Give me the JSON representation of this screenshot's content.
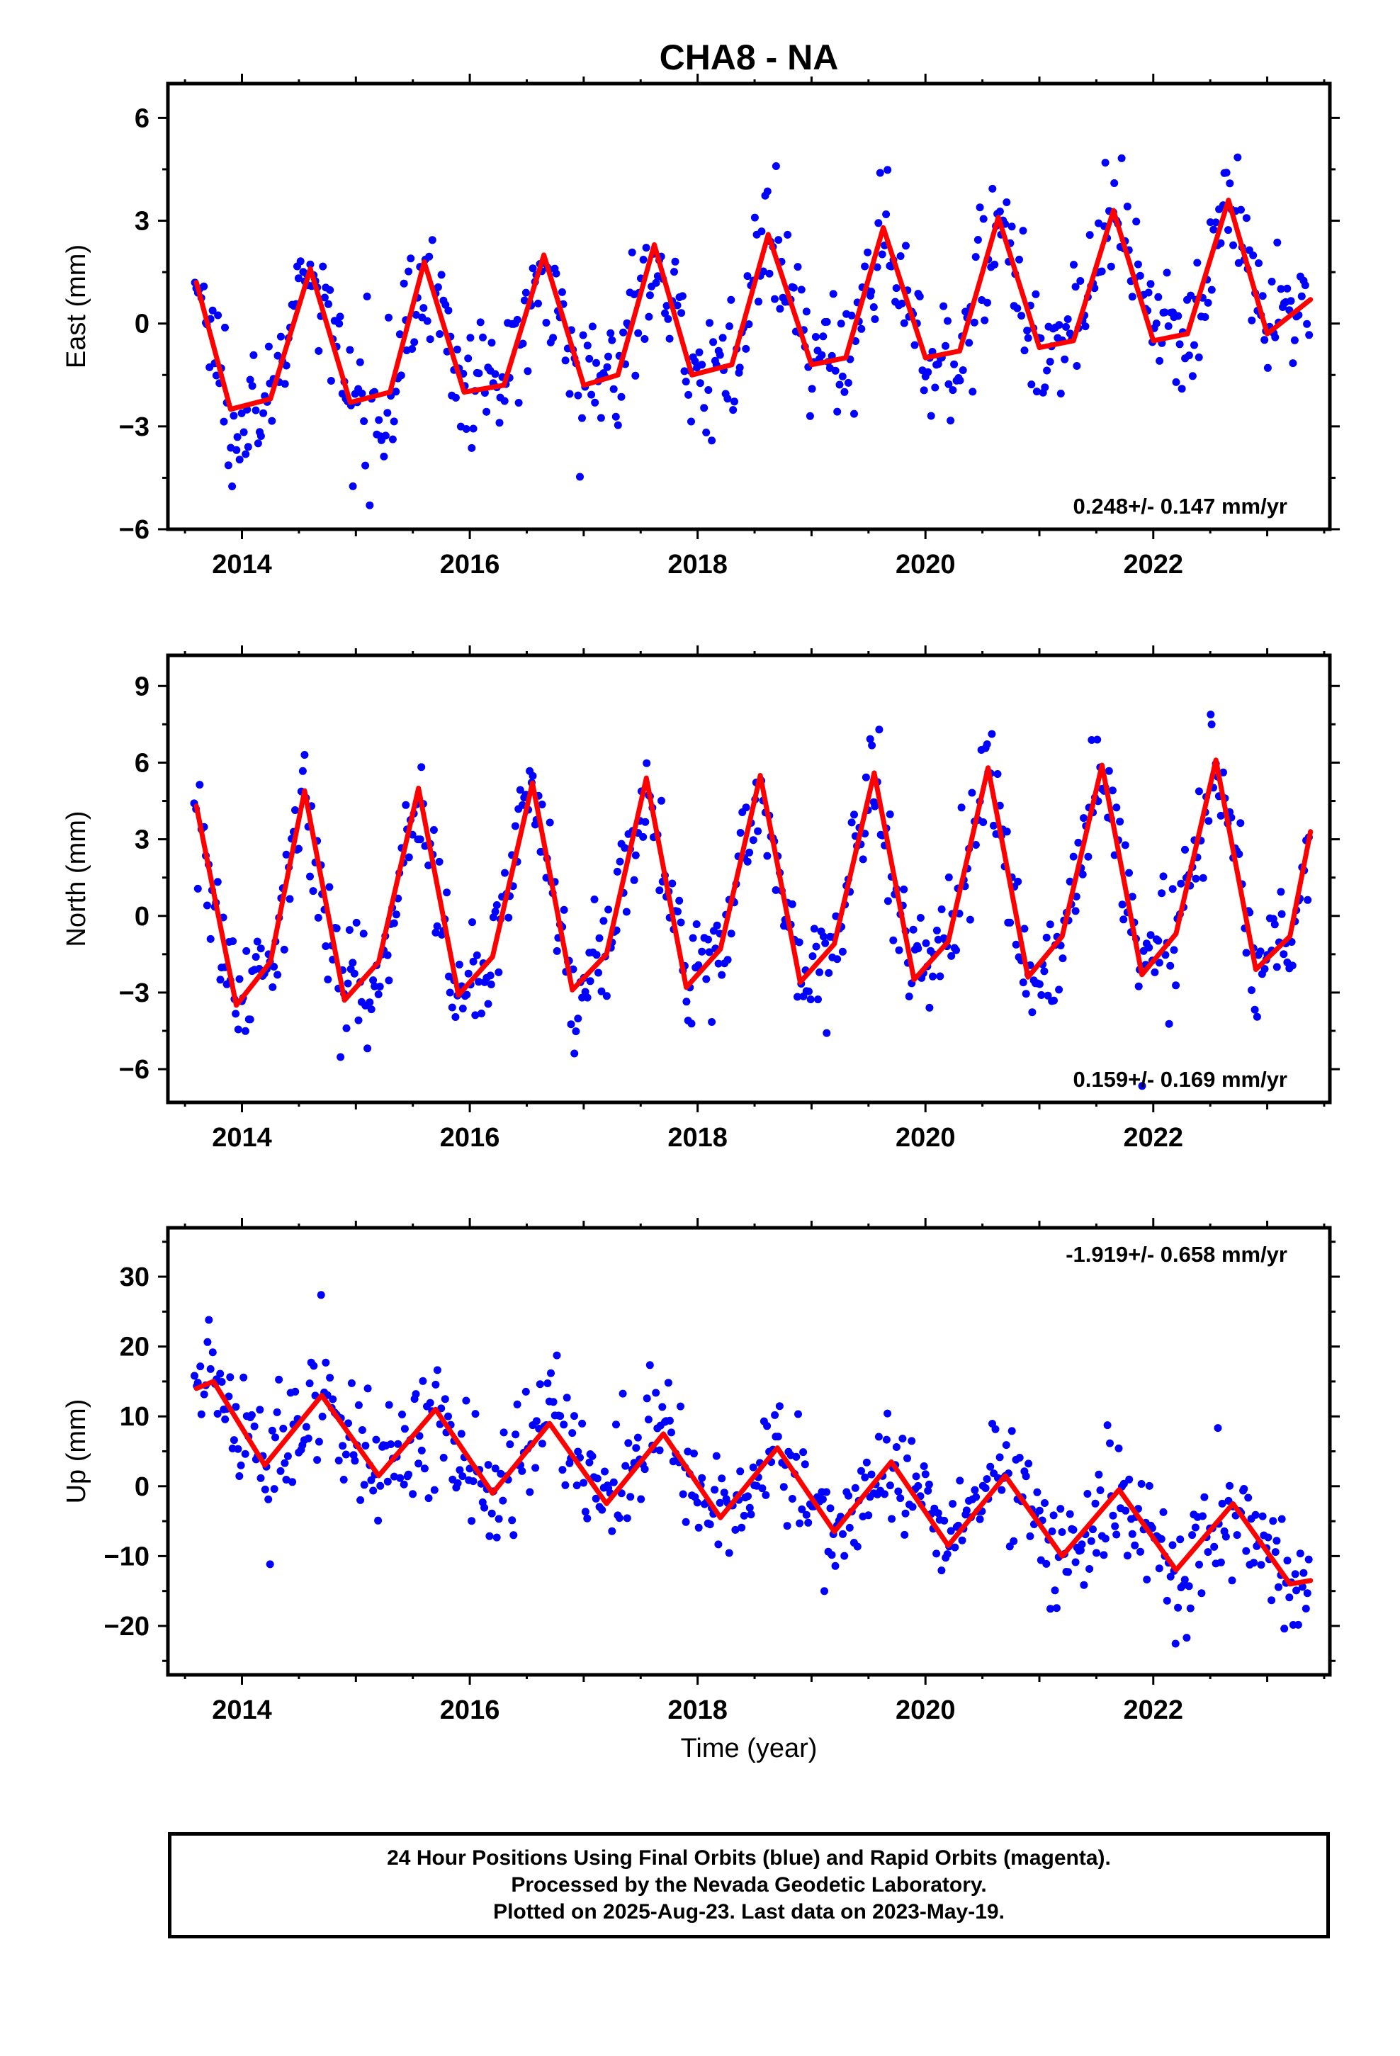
{
  "figure_title": "CHA8 - NA",
  "x_axis_label": "Time (year)",
  "footer": {
    "line1": "24 Hour Positions Using Final Orbits (blue) and Rapid Orbits (magenta).",
    "line2": "Processed by the Nevada Geodetic Laboratory.",
    "line3": "Plotted on 2025-Aug-23. Last data on 2023-May-19."
  },
  "colors": {
    "points": "#0000ff",
    "model": "#ff0000",
    "frame": "#000000"
  },
  "chart_data": [
    {
      "type": "scatter",
      "title": "CHA8 - NA",
      "xlabel": "",
      "ylabel": "East (mm)",
      "rate_text": "0.248+/- 0.147 mm/yr",
      "rate_position": "bottom-right",
      "xlim": [
        2013.35,
        2023.55
      ],
      "ylim": [
        -6,
        7
      ],
      "xticks": [
        2014,
        2016,
        2018,
        2020,
        2022
      ],
      "yticks": [
        -6,
        -3,
        0,
        3,
        6
      ],
      "grid": false,
      "data_span": [
        2013.58,
        2023.38
      ],
      "series": [
        {
          "kind": "daily positions (blue dots)",
          "trend": {
            "intercept_at_2013.6": -0.4,
            "rate": 0.248
          },
          "seasonal": {
            "annual_amplitude": 2.0,
            "peak_phase": 0.62
          },
          "scatter_sd": 0.9
        },
        {
          "kind": "model (red line)",
          "x": [
            2013.6,
            2013.9,
            2014.25,
            2014.6,
            2014.95,
            2015.3,
            2015.6,
            2015.95,
            2016.3,
            2016.65,
            2017.0,
            2017.3,
            2017.62,
            2017.95,
            2018.3,
            2018.62,
            2019.0,
            2019.3,
            2019.63,
            2020.0,
            2020.3,
            2020.64,
            2021.0,
            2021.3,
            2021.65,
            2022.0,
            2022.3,
            2022.66,
            2023.0,
            2023.38
          ],
          "values": [
            1.2,
            -2.5,
            -2.2,
            1.6,
            -2.3,
            -2.0,
            1.8,
            -2.0,
            -1.8,
            2.0,
            -1.8,
            -1.5,
            2.3,
            -1.5,
            -1.2,
            2.6,
            -1.2,
            -1.0,
            2.8,
            -1.0,
            -0.8,
            3.1,
            -0.7,
            -0.5,
            3.3,
            -0.5,
            -0.3,
            3.6,
            -0.3,
            0.7
          ]
        }
      ]
    },
    {
      "type": "scatter",
      "ylabel": "North (mm)",
      "rate_text": "0.159+/- 0.169 mm/yr",
      "rate_position": "bottom-right",
      "xlim": [
        2013.35,
        2023.55
      ],
      "ylim": [
        -7.3,
        10.2
      ],
      "xticks": [
        2014,
        2016,
        2018,
        2020,
        2022
      ],
      "yticks": [
        -6,
        -3,
        0,
        3,
        6,
        9
      ],
      "grid": false,
      "data_span": [
        2013.58,
        2023.38
      ],
      "series": [
        {
          "kind": "daily positions (blue dots)",
          "trend": {
            "intercept_at_2013.6": 0.5,
            "rate": 0.159
          },
          "seasonal": {
            "annual_amplitude": 4.2,
            "peak_phase": 0.55
          },
          "scatter_sd": 1.1
        },
        {
          "kind": "model (red line)",
          "x": [
            2013.6,
            2013.95,
            2014.25,
            2014.55,
            2014.9,
            2015.2,
            2015.55,
            2015.9,
            2016.2,
            2016.55,
            2016.9,
            2017.2,
            2017.55,
            2017.9,
            2018.2,
            2018.55,
            2018.9,
            2019.2,
            2019.55,
            2019.9,
            2020.2,
            2020.55,
            2020.9,
            2021.2,
            2021.55,
            2021.9,
            2022.2,
            2022.55,
            2022.9,
            2023.2,
            2023.38
          ],
          "values": [
            4.3,
            -3.5,
            -1.8,
            4.9,
            -3.3,
            -1.8,
            5.0,
            -3.1,
            -1.6,
            5.2,
            -2.9,
            -1.5,
            5.4,
            -2.8,
            -1.3,
            5.5,
            -2.6,
            -1.1,
            5.6,
            -2.5,
            -1.0,
            5.8,
            -2.4,
            -0.8,
            5.9,
            -2.3,
            -0.7,
            6.1,
            -2.1,
            -0.8,
            3.3
          ]
        }
      ]
    },
    {
      "type": "scatter",
      "ylabel": "Up (mm)",
      "rate_text": "-1.919+/- 0.658 mm/yr",
      "rate_position": "top-right",
      "xlim": [
        2013.35,
        2023.55
      ],
      "ylim": [
        -27,
        37
      ],
      "xticks": [
        2014,
        2016,
        2018,
        2020,
        2022
      ],
      "yticks": [
        -20,
        -10,
        0,
        10,
        20,
        30
      ],
      "grid": false,
      "data_span": [
        2013.58,
        2023.38
      ],
      "series": [
        {
          "kind": "daily positions (blue dots)",
          "trend": {
            "intercept_at_2013.6": 10.5,
            "rate": -1.919
          },
          "seasonal": {
            "annual_amplitude": 5.2,
            "peak_phase": 0.7
          },
          "scatter_sd": 4.2
        },
        {
          "kind": "model (red line)",
          "x": [
            2013.6,
            2013.75,
            2014.2,
            2014.7,
            2015.2,
            2015.7,
            2016.2,
            2016.7,
            2017.2,
            2017.7,
            2018.2,
            2018.7,
            2019.2,
            2019.7,
            2020.2,
            2020.7,
            2021.2,
            2021.7,
            2022.2,
            2022.7,
            2023.2,
            2023.38
          ],
          "values": [
            14.0,
            15.0,
            3.0,
            13.0,
            1.5,
            11.0,
            -1.0,
            9.0,
            -2.5,
            7.5,
            -4.5,
            5.5,
            -6.5,
            3.5,
            -8.5,
            1.5,
            -10.0,
            -0.5,
            -12.0,
            -2.5,
            -14.0,
            -13.5
          ]
        }
      ]
    }
  ]
}
